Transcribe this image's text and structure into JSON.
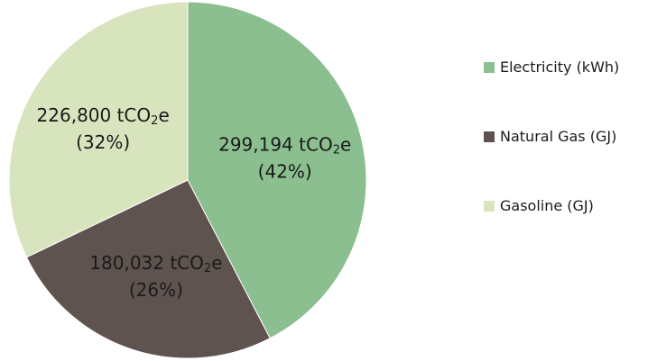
{
  "chart_data": {
    "type": "pie",
    "title": "",
    "categories": [
      "Electricity (kWh)",
      "Natural Gas (GJ)",
      "Gasoline (GJ)"
    ],
    "values": [
      299194,
      180032,
      226800
    ],
    "percentages": [
      42,
      26,
      32
    ],
    "colors": [
      "#8bbf8f",
      "#5f534f",
      "#d8e4bd"
    ],
    "data_labels": [
      {
        "value": "299,194 tCO",
        "subscript": "2",
        "unit_suffix": "e",
        "percent": "(42%)"
      },
      {
        "value": "180,032 tCO",
        "subscript": "2",
        "unit_suffix": "e",
        "percent": "(26%)"
      },
      {
        "value": "226,800 tCO",
        "subscript": "2",
        "unit_suffix": "e",
        "percent": "(32%)"
      }
    ],
    "legend_position": "right",
    "start_angle": "top",
    "direction": "clockwise"
  }
}
